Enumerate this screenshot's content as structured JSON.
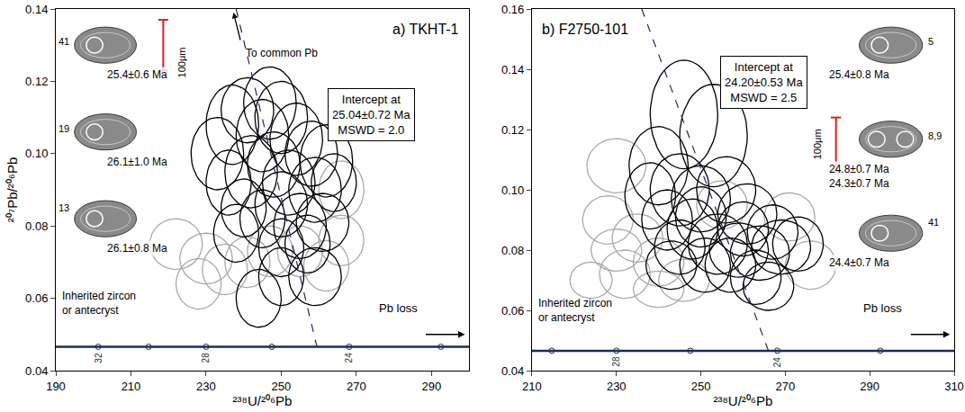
{
  "chart_data": [
    {
      "type": "scatter",
      "title": "a) TKHT-1",
      "xlabel": "²³⁸U/²⁰⁶Pb",
      "ylabel": "²⁰⁷Pb/²⁰⁶Pb",
      "xlim": [
        190,
        300
      ],
      "xticks": [
        190,
        210,
        230,
        250,
        270,
        290
      ],
      "ylim": [
        0.04,
        0.14
      ],
      "yticks": [
        0.04,
        0.06,
        0.08,
        {
          "value": 0.1,
          "label": "0.10"
        },
        0.12,
        0.14
      ],
      "series": [
        {
          "color": "#aaaaaa",
          "marker": "ellipse",
          "x": [
            222,
            230,
            235,
            241,
            247,
            255,
            262,
            266,
            266,
            228
          ],
          "y": [
            0.075,
            0.071,
            0.068,
            0.07,
            0.073,
            0.073,
            0.069,
            0.076,
            0.09,
            0.064
          ],
          "x_err": [
            7,
            7,
            6,
            6,
            6,
            6,
            6,
            6,
            6,
            6
          ],
          "y_err": [
            0.007,
            0.007,
            0.007,
            0.007,
            0.007,
            0.007,
            0.007,
            0.007,
            0.008,
            0.007
          ]
        },
        {
          "color": "#000000",
          "marker": "ellipse",
          "x": [
            233,
            237,
            241,
            245,
            250,
            254,
            258,
            262,
            236,
            242,
            248,
            252,
            259,
            240,
            245,
            250,
            255,
            261,
            257,
            250,
            259,
            250,
            244,
            264,
            247,
            238
          ],
          "y": [
            0.1,
            0.108,
            0.112,
            0.105,
            0.11,
            0.104,
            0.1,
            0.098,
            0.092,
            0.095,
            0.097,
            0.092,
            0.09,
            0.085,
            0.082,
            0.086,
            0.08,
            0.081,
            0.075,
            0.074,
            0.066,
            0.066,
            0.06,
            0.092,
            0.114,
            0.078
          ],
          "x_err": [
            7,
            7,
            7,
            7,
            7,
            7,
            7,
            7,
            6,
            7,
            7,
            7,
            7,
            6,
            6,
            7,
            7,
            7,
            6,
            6,
            7,
            6,
            6,
            6,
            7,
            6
          ],
          "y_err": [
            0.01,
            0.011,
            0.009,
            0.01,
            0.01,
            0.01,
            0.009,
            0.01,
            0.009,
            0.01,
            0.009,
            0.009,
            0.009,
            0.008,
            0.008,
            0.009,
            0.009,
            0.008,
            0.008,
            0.008,
            0.008,
            0.008,
            0.008,
            0.008,
            0.01,
            0.008
          ]
        },
        {
          "type": "line",
          "color": "#1f2a5a",
          "marker": "circle",
          "x": [
            201.3,
            214.7,
            230.0,
            247.5,
            268.1,
            292.5
          ],
          "y": [
            0.0466,
            0.0466,
            0.0466,
            0.0466,
            0.0466,
            0.0466
          ],
          "labels": [
            32,
            null,
            28,
            null,
            24,
            null
          ]
        },
        {
          "type": "line",
          "color": "#1f2a5a",
          "line_style": "dash",
          "x": [
            238,
            259.5
          ],
          "y": [
            0.14,
            0.0466
          ]
        }
      ],
      "intercept_box": [
        "Intercept at",
        "25.04±0.72 Ma",
        "MSWD = 2.0"
      ],
      "common_pb_label": "To common Pb",
      "pb_loss_label": "Pb loss",
      "inherited_label": [
        "Inherited zircon",
        "or antecryst"
      ],
      "scale_label": "100μm",
      "grains": [
        {
          "number": "41",
          "ages": [
            "25.4±0.6 Ma"
          ]
        },
        {
          "number": "19",
          "ages": [
            "26.1±1.0 Ma"
          ]
        },
        {
          "number": "13",
          "ages": [
            "26.1±0.8 Ma"
          ]
        }
      ]
    },
    {
      "type": "scatter",
      "title": "b) F2750-101",
      "xlabel": "²³⁸U/²⁰⁶Pb",
      "xlim": [
        210,
        310
      ],
      "xticks": [
        210,
        230,
        250,
        270,
        290,
        310
      ],
      "ylim": [
        0.04,
        0.16
      ],
      "yticks": [
        0.04,
        0.06,
        0.08,
        {
          "value": 0.1,
          "label": "0.10"
        },
        0.12,
        0.14,
        0.16
      ],
      "series": [
        {
          "color": "#aaaaaa",
          "marker": "ellipse",
          "x": [
            230,
            228,
            235,
            232,
            240,
            224,
            240,
            255,
            271,
            276,
            246,
            230
          ],
          "y": [
            0.108,
            0.09,
            0.084,
            0.072,
            0.067,
            0.07,
            0.076,
            0.095,
            0.091,
            0.075,
            0.07,
            0.08
          ],
          "x_err": [
            7,
            6,
            6,
            6,
            6,
            5,
            6,
            6,
            6,
            6,
            6,
            6
          ],
          "y_err": [
            0.009,
            0.008,
            0.008,
            0.008,
            0.006,
            0.006,
            0.008,
            0.008,
            0.008,
            0.008,
            0.007,
            0.007
          ]
        },
        {
          "color": "#000000",
          "marker": "ellipse",
          "x": [
            246,
            253,
            240,
            245,
            250,
            256,
            261,
            242,
            248,
            254,
            259,
            264,
            269,
            257,
            251,
            263,
            267,
            245,
            273,
            266,
            250,
            238,
            243,
            260
          ],
          "y": [
            0.125,
            0.118,
            0.108,
            0.1,
            0.097,
            0.1,
            0.092,
            0.09,
            0.087,
            0.082,
            0.08,
            0.079,
            0.081,
            0.075,
            0.075,
            0.071,
            0.086,
            0.081,
            0.082,
            0.068,
            0.091,
            0.098,
            0.075,
            0.087
          ],
          "x_err": [
            8,
            8,
            7,
            7,
            7,
            7,
            7,
            6,
            6,
            7,
            7,
            7,
            7,
            6,
            6,
            6,
            6,
            6,
            6,
            6,
            6,
            6,
            6,
            6
          ],
          "y_err": [
            0.018,
            0.017,
            0.013,
            0.012,
            0.011,
            0.011,
            0.01,
            0.01,
            0.01,
            0.01,
            0.009,
            0.009,
            0.009,
            0.009,
            0.009,
            0.009,
            0.009,
            0.009,
            0.009,
            0.008,
            0.01,
            0.011,
            0.008,
            0.009
          ]
        },
        {
          "type": "line",
          "color": "#1f2a5a",
          "marker": "circle",
          "x": [
            214.7,
            230.0,
            247.5,
            268.1,
            292.5
          ],
          "y": [
            0.0466,
            0.0466,
            0.0466,
            0.0466,
            0.0466
          ],
          "labels": [
            null,
            28,
            null,
            24,
            null
          ]
        },
        {
          "type": "line",
          "color": "#1f2a5a",
          "line_style": "dash",
          "x": [
            236,
            266
          ],
          "y": [
            0.16,
            0.0466
          ]
        }
      ],
      "intercept_box": [
        "Intercept at",
        "24.20±0.53 Ma",
        "MSWD = 2.5"
      ],
      "pb_loss_label": "Pb loss",
      "inherited_label": [
        "Inherited zircon",
        "or antecryst"
      ],
      "scale_label": "100μm",
      "grains": [
        {
          "number": "5",
          "ages": [
            "25.4±0.8 Ma"
          ]
        },
        {
          "number": "8,9",
          "ages": [
            "24.8±0.7 Ma",
            "24.3±0.7 Ma"
          ]
        },
        {
          "number": "41",
          "ages": [
            "24.4±0.7 Ma"
          ]
        }
      ]
    }
  ]
}
